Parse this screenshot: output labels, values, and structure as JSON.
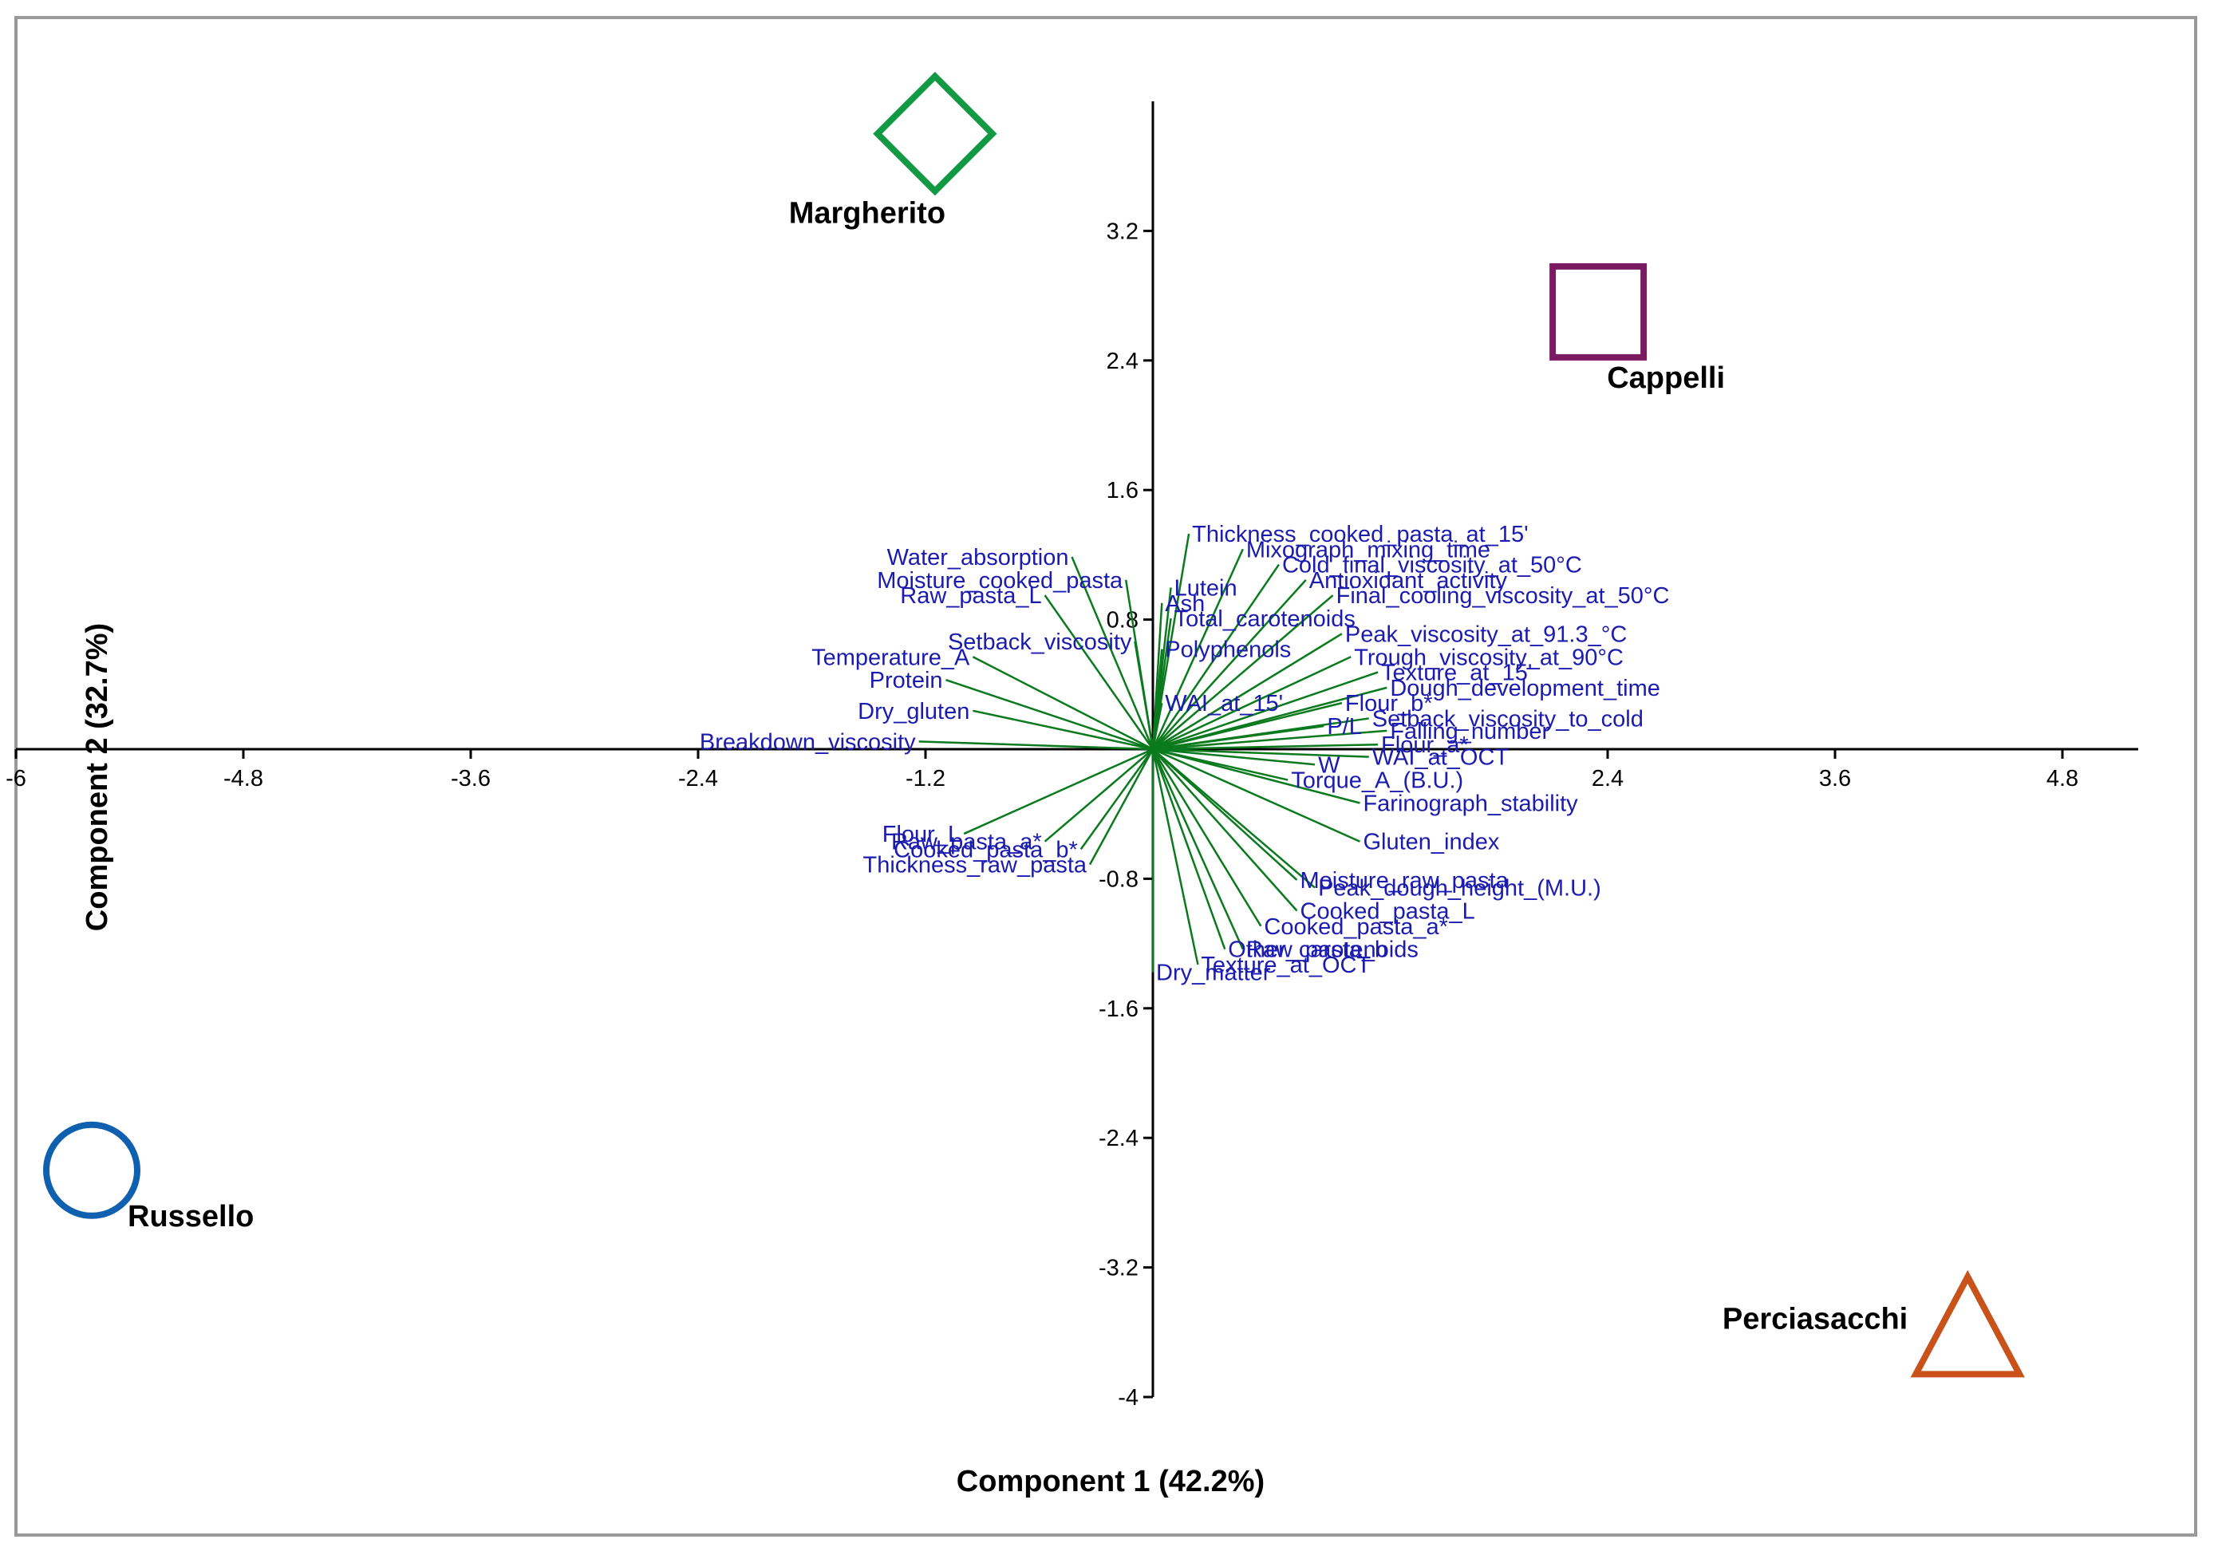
{
  "chart_data": {
    "type": "scatter",
    "subtype": "pca-biplot",
    "title": "",
    "xlabel": "Component 1 (42.2%)",
    "ylabel": "Component 2 (32.7%)",
    "xlim": [
      -6,
      5.2
    ],
    "ylim": [
      -4,
      4
    ],
    "xticks": [
      -6,
      -4.8,
      -3.6,
      -2.4,
      -1.2,
      2.4,
      3.6,
      4.8
    ],
    "xtick_labels": [
      "-6",
      "-4.8",
      "-3.6",
      "-2.4",
      "-1.2",
      "2.4",
      "3.6",
      "4.8"
    ],
    "yticks": [
      3.2,
      2.4,
      1.6,
      0.8,
      -0.8,
      -1.6,
      -2.4,
      -3.2,
      -4
    ],
    "ytick_labels": [
      "3.2",
      "2.4",
      "1.6",
      "0.8",
      "-0.8",
      "-1.6",
      "-2.4",
      "-3.2",
      "-4"
    ],
    "groups": [
      {
        "name": "Margherito",
        "marker": "diamond",
        "color": "#119944",
        "x": -1.15,
        "y": 3.8
      },
      {
        "name": "Cappelli",
        "marker": "square",
        "color": "#7a1a60",
        "x": 2.35,
        "y": 2.7
      },
      {
        "name": "Russello",
        "marker": "circle",
        "color": "#1060b0",
        "x": -5.6,
        "y": -2.6
      },
      {
        "name": "Perciasacchi",
        "marker": "triangle",
        "color": "#c8521a",
        "x": 4.3,
        "y": -3.8
      }
    ],
    "loadings": [
      {
        "label": "Thickness_cooked_pasta_at_15'",
        "x": 0.2,
        "y": 1.4
      },
      {
        "label": "Mixograph_mixing_time",
        "x": 0.5,
        "y": 1.3
      },
      {
        "label": "Cold_final_viscosity_at_50°C",
        "x": 0.7,
        "y": 1.2
      },
      {
        "label": "Lutein",
        "x": 0.1,
        "y": 1.05
      },
      {
        "label": "Antioxidant_activity",
        "x": 0.85,
        "y": 1.1
      },
      {
        "label": "Ash",
        "x": 0.05,
        "y": 0.95
      },
      {
        "label": "Final_cooling_viscosity_at_50°C",
        "x": 1.0,
        "y": 1.0
      },
      {
        "label": "Total_carotenoids",
        "x": 0.1,
        "y": 0.85
      },
      {
        "label": "Peak_viscosity_at_91.3_°C",
        "x": 1.05,
        "y": 0.75
      },
      {
        "label": "Polyphenols",
        "x": 0.05,
        "y": 0.65
      },
      {
        "label": "Trough_viscosity_at_90°C",
        "x": 1.1,
        "y": 0.6
      },
      {
        "label": "Texture_at_15'",
        "x": 1.25,
        "y": 0.5
      },
      {
        "label": "Dough_development_time",
        "x": 1.3,
        "y": 0.4
      },
      {
        "label": "Flour_b*",
        "x": 1.05,
        "y": 0.3
      },
      {
        "label": "WAI_at_15'",
        "x": 0.05,
        "y": 0.3
      },
      {
        "label": "Setback_viscosity_to_cold",
        "x": 1.2,
        "y": 0.2
      },
      {
        "label": "P/L",
        "x": 0.95,
        "y": 0.15
      },
      {
        "label": "Falling_number",
        "x": 1.3,
        "y": 0.12
      },
      {
        "label": "Flour_a*",
        "x": 1.25,
        "y": 0.03
      },
      {
        "label": "W",
        "x": 0.9,
        "y": -0.1
      },
      {
        "label": "WAI_at_OCT",
        "x": 1.2,
        "y": -0.05
      },
      {
        "label": "Torque_A_(B.U.)",
        "x": 0.75,
        "y": -0.2
      },
      {
        "label": "Farinograph_stability",
        "x": 1.15,
        "y": -0.35
      },
      {
        "label": "Gluten_index",
        "x": 1.15,
        "y": -0.6
      },
      {
        "label": "Moisture_raw_pasta",
        "x": 0.8,
        "y": -0.85
      },
      {
        "label": "Peak_dough_height_(M.U.)",
        "x": 0.9,
        "y": -0.9
      },
      {
        "label": "Cooked_pasta_L",
        "x": 0.8,
        "y": -1.05
      },
      {
        "label": "Cooked_pasta_a*",
        "x": 0.6,
        "y": -1.15
      },
      {
        "label": "Raw_pasta_b",
        "x": 0.5,
        "y": -1.3
      },
      {
        "label": "Other_carotenoids",
        "x": 0.4,
        "y": -1.3
      },
      {
        "label": "Texture_at_OCT",
        "x": 0.25,
        "y": -1.4
      },
      {
        "label": "Dry_matter",
        "x": 0.0,
        "y": -1.45
      },
      {
        "label": "Water_absorption",
        "x": -0.45,
        "y": 1.25
      },
      {
        "label": "Moisture_cooked_pasta",
        "x": -0.15,
        "y": 1.1
      },
      {
        "label": "Raw_pasta_L",
        "x": -0.6,
        "y": 1.0
      },
      {
        "label": "Setback_viscosity",
        "x": -0.1,
        "y": 0.7
      },
      {
        "label": "Temperature_A",
        "x": -1.0,
        "y": 0.6
      },
      {
        "label": "Protein",
        "x": -1.15,
        "y": 0.45
      },
      {
        "label": "Dry_gluten",
        "x": -1.0,
        "y": 0.25
      },
      {
        "label": "Breakdown_viscosity",
        "x": -1.3,
        "y": 0.05
      },
      {
        "label": "Flour_L",
        "x": -1.05,
        "y": -0.55
      },
      {
        "label": "Raw_pasta_a*",
        "x": -0.6,
        "y": -0.6
      },
      {
        "label": "Cooked_pasta_b*",
        "x": -0.4,
        "y": -0.65
      },
      {
        "label": "Thickness_raw_pasta",
        "x": -0.35,
        "y": -0.75
      }
    ]
  }
}
